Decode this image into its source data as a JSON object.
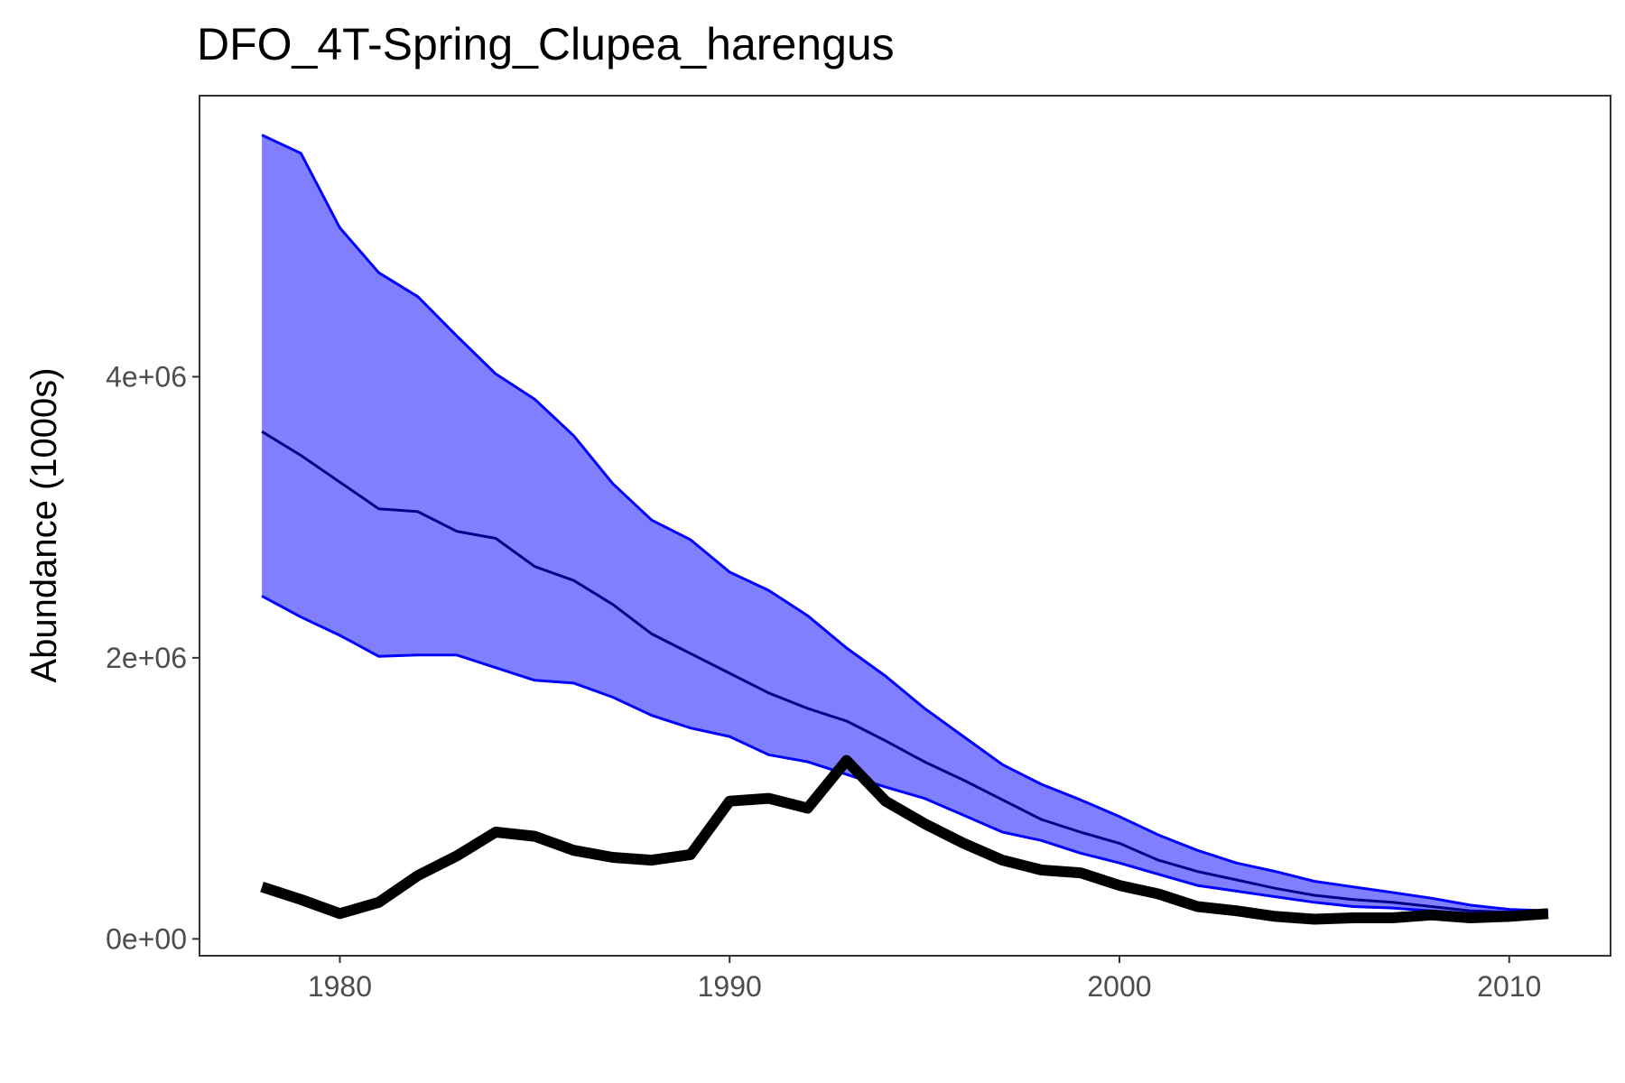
{
  "chart_data": {
    "type": "line",
    "title": "DFO_4T-Spring_Clupea_harengus",
    "xlabel": "",
    "ylabel": "Abundance (1000s)",
    "xlim": [
      1976.4,
      2012.6
    ],
    "ylim": [
      -120000,
      6000000
    ],
    "x_ticks": [
      1980,
      1990,
      2000,
      2010
    ],
    "x_tick_labels": [
      "1980",
      "1990",
      "2000",
      "2010"
    ],
    "y_ticks": [
      0,
      2000000,
      4000000
    ],
    "y_tick_labels": [
      "0e+00",
      "2e+06",
      "4e+06"
    ],
    "grid": false,
    "legend": "none",
    "colors": {
      "band_fill": "#8080ff",
      "band_edge": "#0000ff",
      "median_line": "#00008b",
      "observed_line": "#000000",
      "panel_border": "#333333",
      "tick_text": "#4d4d4d"
    },
    "x": [
      1978,
      1979,
      1980,
      1981,
      1982,
      1983,
      1984,
      1985,
      1986,
      1987,
      1988,
      1989,
      1990,
      1991,
      1992,
      1993,
      1994,
      1995,
      1996,
      1997,
      1998,
      1999,
      2000,
      2001,
      2002,
      2003,
      2004,
      2005,
      2006,
      2007,
      2008,
      2009,
      2010,
      2011
    ],
    "series": [
      {
        "role": "band_upper",
        "values": [
          5720000,
          5590000,
          5060000,
          4740000,
          4570000,
          4290000,
          4020000,
          3840000,
          3580000,
          3240000,
          2980000,
          2840000,
          2610000,
          2480000,
          2300000,
          2070000,
          1870000,
          1640000,
          1440000,
          1240000,
          1100000,
          990000,
          870000,
          740000,
          630000,
          540000,
          480000,
          410000,
          370000,
          330000,
          290000,
          240000,
          210000,
          200000
        ]
      },
      {
        "role": "median",
        "values": [
          3610000,
          3440000,
          3250000,
          3060000,
          3040000,
          2900000,
          2850000,
          2650000,
          2550000,
          2380000,
          2170000,
          2030000,
          1890000,
          1750000,
          1640000,
          1550000,
          1410000,
          1260000,
          1130000,
          990000,
          850000,
          760000,
          680000,
          560000,
          480000,
          420000,
          360000,
          310000,
          280000,
          260000,
          230000,
          200000,
          190000,
          180000
        ]
      },
      {
        "role": "band_lower",
        "values": [
          2440000,
          2290000,
          2160000,
          2010000,
          2020000,
          2020000,
          1930000,
          1840000,
          1820000,
          1720000,
          1590000,
          1500000,
          1440000,
          1310000,
          1260000,
          1170000,
          1080000,
          1000000,
          880000,
          760000,
          700000,
          610000,
          540000,
          460000,
          380000,
          340000,
          300000,
          260000,
          230000,
          220000,
          200000,
          180000,
          180000,
          170000
        ]
      },
      {
        "role": "observed",
        "values": [
          370000,
          280000,
          180000,
          260000,
          450000,
          590000,
          760000,
          730000,
          630000,
          580000,
          560000,
          600000,
          980000,
          1000000,
          930000,
          1270000,
          980000,
          820000,
          680000,
          560000,
          490000,
          470000,
          380000,
          320000,
          230000,
          200000,
          160000,
          140000,
          150000,
          150000,
          170000,
          150000,
          160000,
          180000
        ]
      }
    ]
  }
}
